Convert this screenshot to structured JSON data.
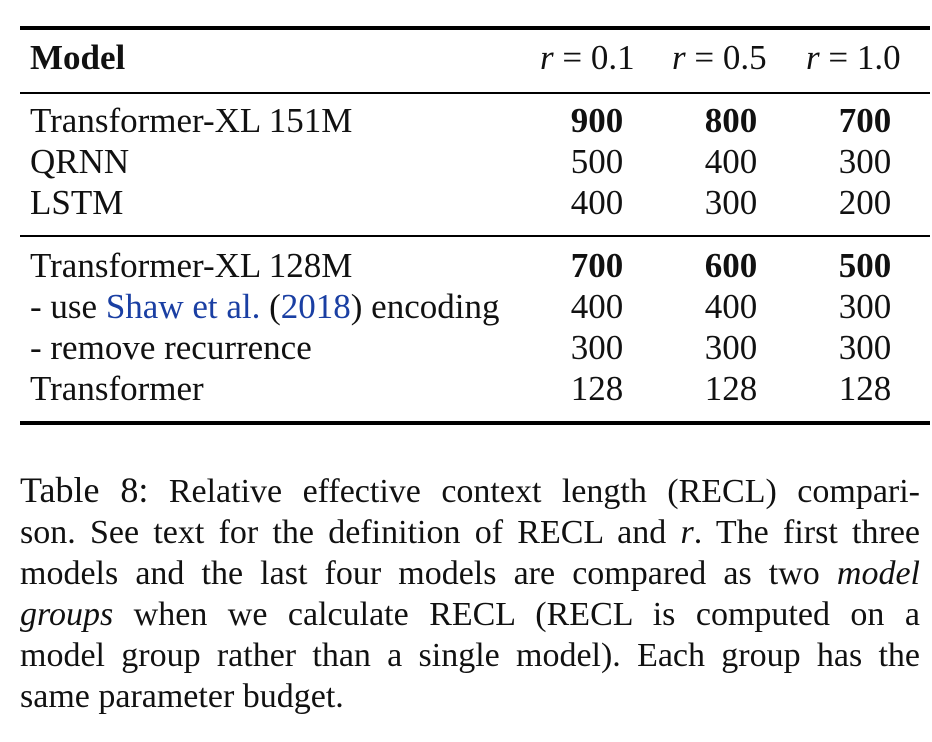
{
  "table": {
    "header": {
      "model": "Model",
      "r_var": "r",
      "r_values": [
        "= 0.1",
        "= 0.5",
        "= 1.0"
      ]
    },
    "group1": [
      {
        "model": "Transformer-XL 151M",
        "values": [
          "900",
          "800",
          "700"
        ],
        "bold": true
      },
      {
        "model": "QRNN",
        "values": [
          "500",
          "400",
          "300"
        ],
        "bold": false
      },
      {
        "model": "LSTM",
        "values": [
          "400",
          "300",
          "200"
        ],
        "bold": false
      }
    ],
    "group2": [
      {
        "model": "Transformer-XL 128M",
        "values": [
          "700",
          "600",
          "500"
        ],
        "bold": true
      },
      {
        "model_prefix": "- use ",
        "model_link": "Shaw et al.",
        "model_paren_open": " (",
        "model_year": "2018",
        "model_suffix": ") encoding",
        "values": [
          "400",
          "400",
          "300"
        ],
        "bold": false
      },
      {
        "model": "- remove recurrence",
        "values": [
          "300",
          "300",
          "300"
        ],
        "bold": false
      },
      {
        "model": "Transformer",
        "values": [
          "128",
          "128",
          "128"
        ],
        "bold": false
      }
    ]
  },
  "caption": {
    "label": "Table 8:",
    "line1": "Relative effective context length (RECL) compari-",
    "line2_a": "son. See text for the definition of RECL and ",
    "line2_var": "r",
    "line2_b": ". The first three",
    "line3_a": "models and the last four models are compared as two ",
    "line3_em": "model",
    "line4_em": "groups",
    "line4_b": " when we calculate RECL (RECL is computed on a",
    "line5": "model group rather than a single model). Each group has the",
    "line6": "same parameter budget."
  }
}
